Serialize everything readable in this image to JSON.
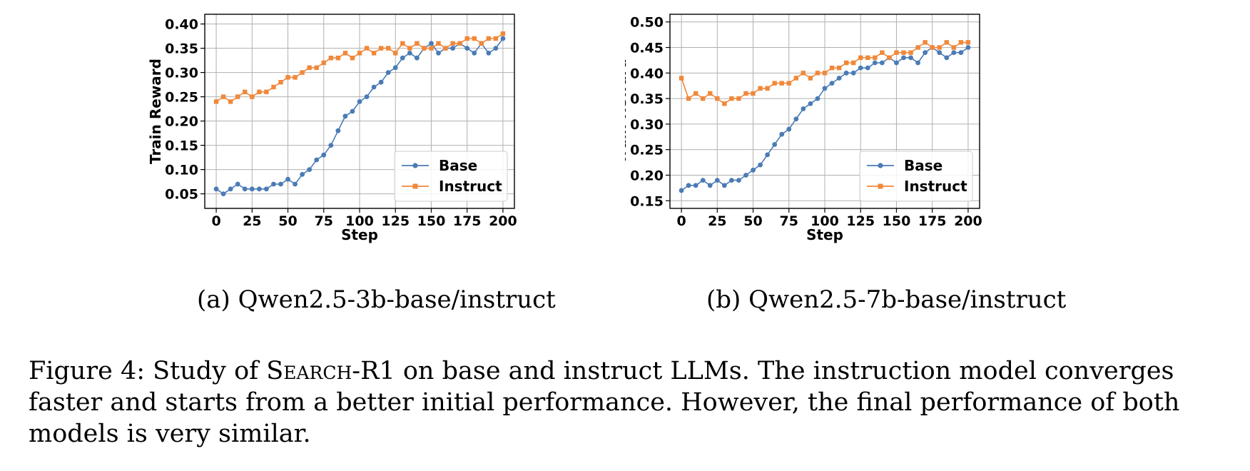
{
  "chart_data": [
    {
      "type": "line",
      "xlabel": "Step",
      "ylabel": "Train Reward",
      "xlim": [
        -8,
        208
      ],
      "ylim": [
        0.02,
        0.42
      ],
      "xticks": [
        0,
        25,
        50,
        75,
        100,
        125,
        150,
        175,
        200
      ],
      "yticks": [
        0.05,
        0.1,
        0.15,
        0.2,
        0.25,
        0.3,
        0.35,
        0.4
      ],
      "ytick_labels": [
        "0.05",
        "0.10",
        "0.15",
        "0.20",
        "0.25",
        "0.30",
        "0.35",
        "0.40"
      ],
      "grid": true,
      "legend": "lower-right",
      "series": [
        {
          "name": "Base",
          "color": "#4a7bb5",
          "marker": "circle",
          "x": [
            0,
            5,
            10,
            15,
            20,
            25,
            30,
            35,
            40,
            45,
            50,
            55,
            60,
            65,
            70,
            75,
            80,
            85,
            90,
            95,
            100,
            105,
            110,
            115,
            120,
            125,
            130,
            135,
            140,
            145,
            150,
            155,
            160,
            165,
            170,
            175,
            180,
            185,
            190,
            195,
            200
          ],
          "y": [
            0.06,
            0.05,
            0.06,
            0.07,
            0.06,
            0.06,
            0.06,
            0.06,
            0.07,
            0.07,
            0.08,
            0.07,
            0.09,
            0.1,
            0.12,
            0.13,
            0.15,
            0.18,
            0.21,
            0.22,
            0.24,
            0.25,
            0.27,
            0.28,
            0.3,
            0.31,
            0.33,
            0.34,
            0.33,
            0.35,
            0.36,
            0.34,
            0.35,
            0.35,
            0.36,
            0.35,
            0.34,
            0.36,
            0.34,
            0.35,
            0.37
          ]
        },
        {
          "name": "Instruct",
          "color": "#f0883a",
          "marker": "square",
          "x": [
            0,
            5,
            10,
            15,
            20,
            25,
            30,
            35,
            40,
            45,
            50,
            55,
            60,
            65,
            70,
            75,
            80,
            85,
            90,
            95,
            100,
            105,
            110,
            115,
            120,
            125,
            130,
            135,
            140,
            145,
            150,
            155,
            160,
            165,
            170,
            175,
            180,
            185,
            190,
            195,
            200
          ],
          "y": [
            0.24,
            0.25,
            0.24,
            0.25,
            0.26,
            0.25,
            0.26,
            0.26,
            0.27,
            0.28,
            0.29,
            0.29,
            0.3,
            0.31,
            0.31,
            0.32,
            0.33,
            0.33,
            0.34,
            0.33,
            0.34,
            0.35,
            0.34,
            0.35,
            0.35,
            0.34,
            0.36,
            0.35,
            0.36,
            0.35,
            0.35,
            0.36,
            0.35,
            0.36,
            0.36,
            0.37,
            0.37,
            0.36,
            0.37,
            0.37,
            0.38
          ]
        }
      ]
    },
    {
      "type": "line",
      "xlabel": "Step",
      "ylabel": "Train Reward",
      "xlim": [
        -8,
        208
      ],
      "ylim": [
        0.135,
        0.515
      ],
      "xticks": [
        0,
        25,
        50,
        75,
        100,
        125,
        150,
        175,
        200
      ],
      "yticks": [
        0.15,
        0.2,
        0.25,
        0.3,
        0.35,
        0.4,
        0.45,
        0.5
      ],
      "ytick_labels": [
        "0.15",
        "0.20",
        "0.25",
        "0.30",
        "0.35",
        "0.40",
        "0.45",
        "0.50"
      ],
      "grid": true,
      "legend": "lower-right",
      "series": [
        {
          "name": "Base",
          "color": "#4a7bb5",
          "marker": "circle",
          "x": [
            0,
            5,
            10,
            15,
            20,
            25,
            30,
            35,
            40,
            45,
            50,
            55,
            60,
            65,
            70,
            75,
            80,
            85,
            90,
            95,
            100,
            105,
            110,
            115,
            120,
            125,
            130,
            135,
            140,
            145,
            150,
            155,
            160,
            165,
            170,
            175,
            180,
            185,
            190,
            195,
            200
          ],
          "y": [
            0.17,
            0.18,
            0.18,
            0.19,
            0.18,
            0.19,
            0.18,
            0.19,
            0.19,
            0.2,
            0.21,
            0.22,
            0.24,
            0.26,
            0.28,
            0.29,
            0.31,
            0.33,
            0.34,
            0.35,
            0.37,
            0.38,
            0.39,
            0.4,
            0.4,
            0.41,
            0.41,
            0.42,
            0.42,
            0.43,
            0.42,
            0.43,
            0.43,
            0.42,
            0.44,
            0.45,
            0.44,
            0.43,
            0.44,
            0.44,
            0.45
          ]
        },
        {
          "name": "Instruct",
          "color": "#f0883a",
          "marker": "square",
          "x": [
            0,
            5,
            10,
            15,
            20,
            25,
            30,
            35,
            40,
            45,
            50,
            55,
            60,
            65,
            70,
            75,
            80,
            85,
            90,
            95,
            100,
            105,
            110,
            115,
            120,
            125,
            130,
            135,
            140,
            145,
            150,
            155,
            160,
            165,
            170,
            175,
            180,
            185,
            190,
            195,
            200
          ],
          "y": [
            0.39,
            0.35,
            0.36,
            0.35,
            0.36,
            0.35,
            0.34,
            0.35,
            0.35,
            0.36,
            0.36,
            0.37,
            0.37,
            0.38,
            0.38,
            0.38,
            0.39,
            0.4,
            0.39,
            0.4,
            0.4,
            0.41,
            0.41,
            0.42,
            0.42,
            0.43,
            0.43,
            0.43,
            0.44,
            0.43,
            0.44,
            0.44,
            0.44,
            0.45,
            0.46,
            0.45,
            0.45,
            0.46,
            0.45,
            0.46,
            0.46
          ]
        }
      ]
    }
  ],
  "subcaptions": {
    "a": "(a) Qwen2.5-3b-base/instruct",
    "b": "(b) Qwen2.5-7b-base/instruct"
  },
  "caption": {
    "prefix": "Figure 4: Study of ",
    "method": "Search",
    "method_suffix": "-R1",
    "rest": " on base and instruct LLMs. The instruction model converges faster and starts from a better initial performance. However, the final performance of both models is very similar."
  }
}
